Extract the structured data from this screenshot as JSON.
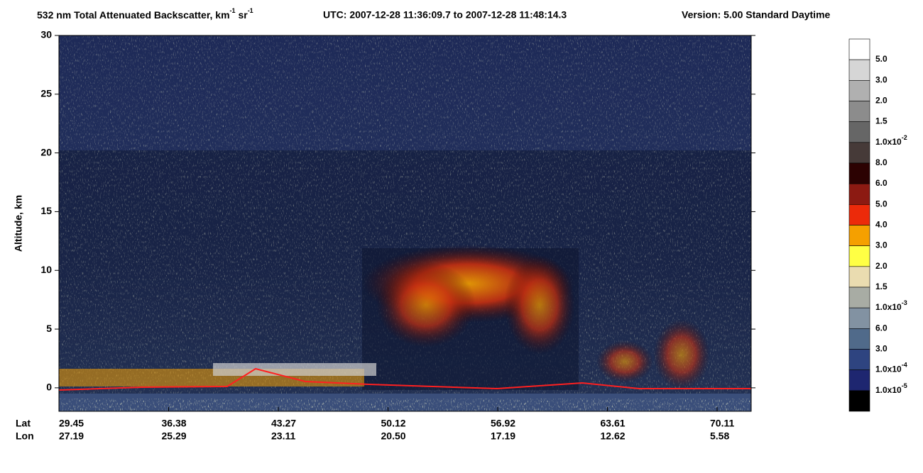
{
  "chart_data": {
    "type": "curtain",
    "title": [
      "532 nm Total Attenuated Backscatter, km",
      "-1",
      " sr",
      "-1"
    ],
    "utc": "UTC:  2007-12-28 11:36:09.7  to  2007-12-28 11:48:14.3",
    "version": "Version: 5.00  Standard  Daytime",
    "y_label": "Altitude, km",
    "ylim": [
      -2,
      30
    ],
    "yticks": [
      0,
      5,
      10,
      15,
      20,
      25,
      30
    ],
    "x_rows": [
      {
        "name": "Lat",
        "labels": [
          "29.45",
          "36.38",
          "43.27",
          "50.12",
          "56.92",
          "63.61",
          "70.11"
        ]
      },
      {
        "name": "Lon",
        "labels": [
          "27.19",
          "25.29",
          "23.11",
          "20.50",
          "17.19",
          "12.62",
          "5.58"
        ]
      }
    ],
    "colorbar": [
      {
        "color": "#ffffff",
        "label": "5.0"
      },
      {
        "color": "#d6d6d6",
        "label": "3.0"
      },
      {
        "color": "#b0b0b0",
        "label": "2.0"
      },
      {
        "color": "#8c8c8c",
        "label": "1.5"
      },
      {
        "color": "#666666",
        "label": "1.0x10",
        "sup": "-2"
      },
      {
        "color": "#463a38",
        "label": "8.0"
      },
      {
        "color": "#2c0202",
        "label": "6.0"
      },
      {
        "color": "#8c1a12",
        "label": "5.0"
      },
      {
        "color": "#ec2a0a",
        "label": "4.0"
      },
      {
        "color": "#f5a000",
        "label": "3.0"
      },
      {
        "color": "#ffff44",
        "label": "2.0"
      },
      {
        "color": "#eadcb0",
        "label": "1.5"
      },
      {
        "color": "#a8aca4",
        "label": "1.0x10",
        "sup": "-3"
      },
      {
        "color": "#8292a2",
        "label": "6.0"
      },
      {
        "color": "#506a8a",
        "label": "3.0"
      },
      {
        "color": "#2e4480",
        "label": "1.0x10",
        "sup": "-4"
      },
      {
        "color": "#1e2670",
        "label": "1.0x10",
        "sup": "-5"
      },
      {
        "color": "#000000",
        "label": null
      }
    ]
  }
}
